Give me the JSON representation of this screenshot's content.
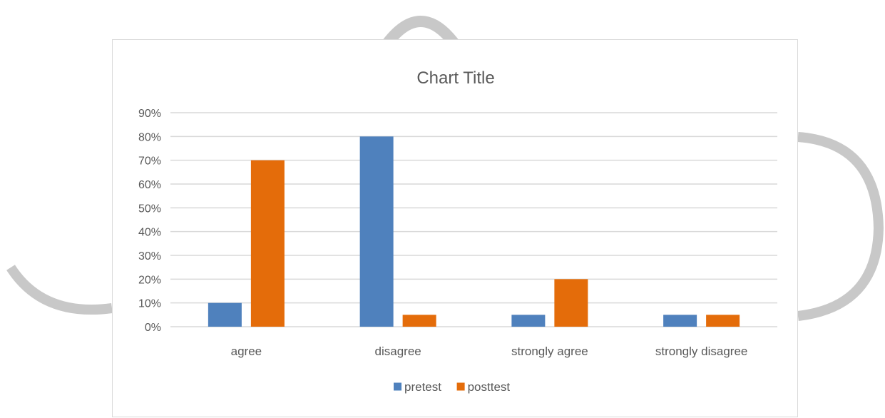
{
  "chart_data": {
    "type": "bar",
    "title": "Chart Title",
    "categories": [
      "agree",
      "disagree",
      "strongly agree",
      "strongly disagree"
    ],
    "series": [
      {
        "name": "pretest",
        "values": [
          10,
          80,
          5,
          5
        ],
        "color": "#4f81bd"
      },
      {
        "name": "posttest",
        "values": [
          70,
          5,
          20,
          5
        ],
        "color": "#e46c0a"
      }
    ],
    "y_ticks": [
      "0%",
      "10%",
      "20%",
      "30%",
      "40%",
      "50%",
      "60%",
      "70%",
      "80%",
      "90%"
    ],
    "ylim": [
      0,
      90
    ],
    "y_unit": "%",
    "grid": true,
    "legend_position": "bottom"
  },
  "colors": {
    "gridline": "#d9d9d9",
    "text": "#595959",
    "watermark": "#c8c8c8"
  }
}
